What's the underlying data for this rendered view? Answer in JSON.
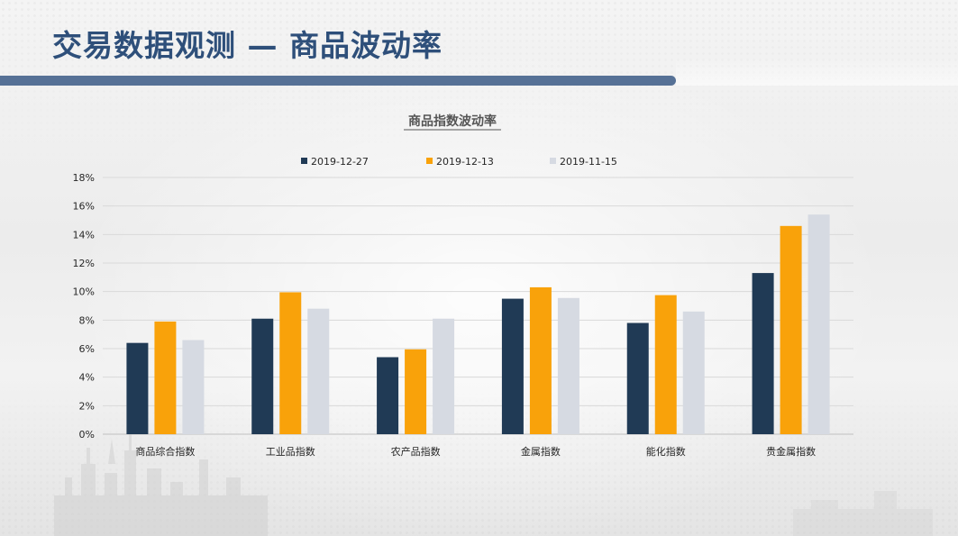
{
  "page": {
    "title": "交易数据观测 — 商品波动率"
  },
  "colors": {
    "title_text": "#2e4f7a",
    "title_bar": "#567196",
    "grid": "#d9d9d9",
    "axis_text": "#262626"
  },
  "chart_data": {
    "type": "bar",
    "title": "商品指数波动率",
    "xlabel": "",
    "ylabel": "",
    "categories": [
      "商品综合指数",
      "工业品指数",
      "农产品指数",
      "金属指数",
      "能化指数",
      "贵金属指数"
    ],
    "series": [
      {
        "name": "2019-12-27",
        "color": "#203a55",
        "values": [
          6.4,
          8.1,
          5.4,
          9.5,
          7.8,
          11.3
        ]
      },
      {
        "name": "2019-12-13",
        "color": "#f9a20a",
        "values": [
          7.9,
          9.95,
          5.95,
          10.3,
          9.75,
          14.6
        ]
      },
      {
        "name": "2019-11-15",
        "color": "#d6dae2",
        "values": [
          6.6,
          8.8,
          8.1,
          9.55,
          8.6,
          15.4
        ]
      }
    ],
    "ylim": [
      0,
      18
    ],
    "yticks": [
      0,
      2,
      4,
      6,
      8,
      10,
      12,
      14,
      16,
      18
    ],
    "ytick_format": "percent",
    "grid": true,
    "legend_position": "top-center"
  }
}
